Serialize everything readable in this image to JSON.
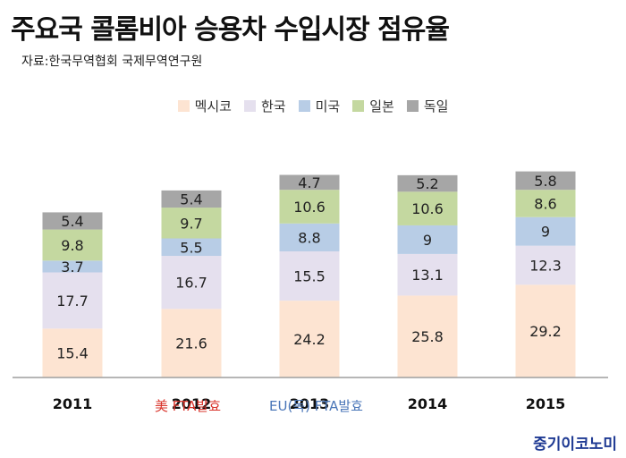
{
  "title": "주요국 콜롬비아 승용차 수입시장 점유율",
  "source": "자료:한국무역협회 국제무역연구원",
  "colors": {
    "mexico": "#fde4d2",
    "korea": "#e5e0ee",
    "usa": "#b8cde6",
    "japan": "#c4d8a0",
    "germany": "#a6a6a6",
    "axis": "#9e9e9e",
    "note_usa": "#d9342b",
    "note_eu": "#4a76b8",
    "logo": "#1f3a93"
  },
  "chart_data": {
    "type": "bar",
    "stacked": true,
    "title": "주요국 콜롬비아 승용차 수입시장 점유율",
    "categories": [
      "2011",
      "2012",
      "2013",
      "2014",
      "2015"
    ],
    "series": [
      {
        "name": "멕시코",
        "color": "#fde4d2",
        "values": [
          15.4,
          21.6,
          24.2,
          25.8,
          29.2
        ]
      },
      {
        "name": "한국",
        "color": "#e5e0ee",
        "values": [
          17.7,
          16.7,
          15.5,
          13.1,
          12.3
        ]
      },
      {
        "name": "미국",
        "color": "#b8cde6",
        "values": [
          3.7,
          5.5,
          8.8,
          9,
          9
        ]
      },
      {
        "name": "일본",
        "color": "#c4d8a0",
        "values": [
          9.8,
          9.7,
          10.6,
          10.6,
          8.6
        ]
      },
      {
        "name": "독일",
        "color": "#a6a6a6",
        "values": [
          5.4,
          5.4,
          4.7,
          5.2,
          5.8
        ]
      }
    ],
    "legend_position": "top-center",
    "grid": false
  },
  "annotations": {
    "usa_fta": "美 FTA발효",
    "eu_fta": "EU(독) FTA발효"
  },
  "logo_text": "중기이코노미"
}
